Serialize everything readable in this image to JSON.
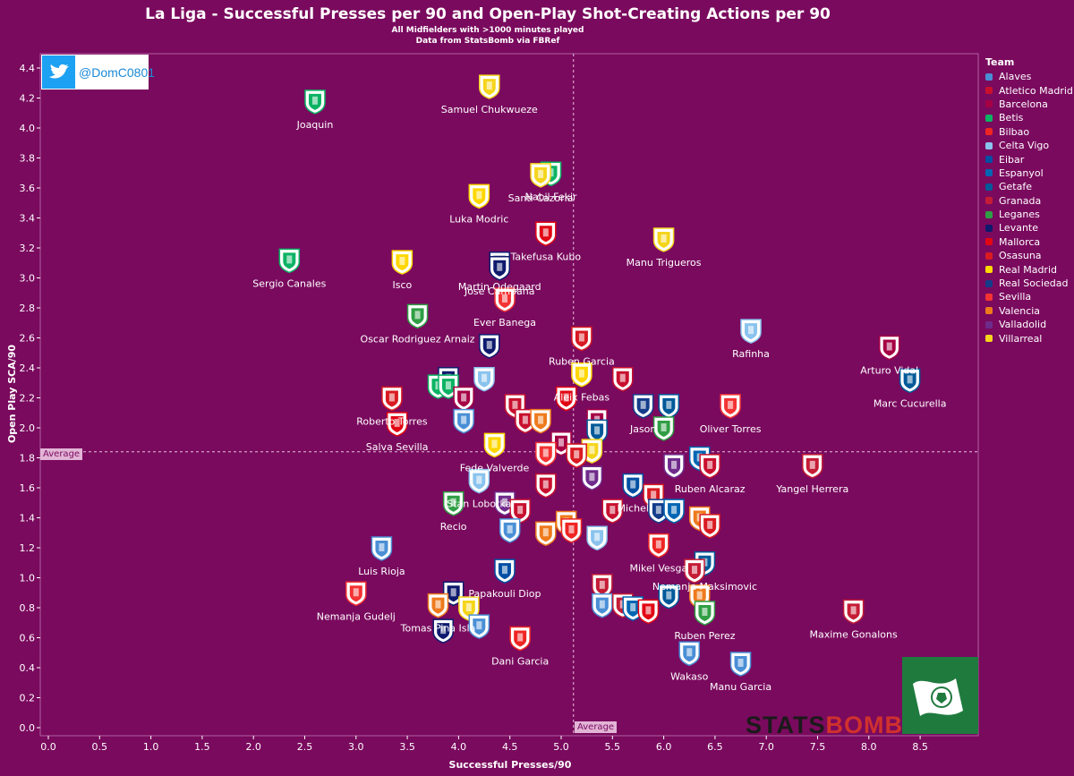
{
  "title": "La Liga - Successful Presses per 90 and Open-Play Shot-Creating Actions per 90",
  "subtitle1": "All Midfielders with >1000 minutes played",
  "subtitle2": "Data from StatsBomb via FBRef",
  "twitter_handle": "@DomC0801",
  "average_label_y": "Average",
  "average_label_x": "Average",
  "watermark": "STATSBOMB",
  "legend": {
    "title": "Team",
    "teams": [
      "Alaves",
      "Atletico Madrid",
      "Barcelona",
      "Betis",
      "Bilbao",
      "Celta Vigo",
      "Eibar",
      "Espanyol",
      "Getafe",
      "Granada",
      "Leganes",
      "Levante",
      "Mallorca",
      "Osasuna",
      "Real Madrid",
      "Real Sociedad",
      "Sevilla",
      "Valencia",
      "Valladolid",
      "Villarreal"
    ],
    "colors": [
      "#4a8fd6",
      "#c8102e",
      "#a50044",
      "#0bb363",
      "#ee2523",
      "#8ac3ee",
      "#004fa3",
      "#0066b3",
      "#005999",
      "#c51c36",
      "#2f9e44",
      "#0e1a6d",
      "#e20613",
      "#d91a21",
      "#ffd700",
      "#143c8b",
      "#f43333",
      "#ee7a1c",
      "#6e2b8b",
      "#f5d51c"
    ]
  },
  "chart_data": {
    "type": "scatter",
    "title": "La Liga - Successful Presses per 90 and Open-Play Shot-Creating Actions per 90",
    "xlabel": "Successful Presses/90",
    "ylabel": "Open Play SCA/90",
    "xlim": [
      -0.05,
      9.0
    ],
    "ylim": [
      -0.05,
      4.6
    ],
    "x_ticks": [
      0.0,
      0.5,
      1.0,
      1.5,
      2.0,
      2.5,
      3.0,
      3.5,
      4.0,
      4.5,
      5.0,
      5.5,
      6.0,
      6.5,
      7.0,
      7.5,
      8.0,
      8.5
    ],
    "y_ticks": [
      0.0,
      0.2,
      0.4,
      0.6,
      0.8,
      1.0,
      1.2,
      1.4,
      1.6,
      1.8,
      2.0,
      2.2,
      2.4,
      2.6,
      2.8,
      3.0,
      3.2,
      3.4,
      3.6,
      3.8,
      4.0,
      4.2,
      4.4
    ],
    "x_average": 5.12,
    "y_average": 1.84,
    "grid": false,
    "legend_position": "right",
    "points": [
      {
        "x": 2.6,
        "y": 4.18,
        "team": "Betis",
        "label": "Joaquin"
      },
      {
        "x": 4.3,
        "y": 4.28,
        "team": "Villarreal",
        "label": "Samuel Chukwueze"
      },
      {
        "x": 4.9,
        "y": 3.7,
        "team": "Betis",
        "label": "Nabil Fekir"
      },
      {
        "x": 4.8,
        "y": 3.69,
        "team": "Villarreal",
        "label": "Santi Cazorla"
      },
      {
        "x": 4.2,
        "y": 3.55,
        "team": "Real Madrid",
        "label": "Luka Modric"
      },
      {
        "x": 4.85,
        "y": 3.3,
        "team": "Mallorca",
        "label": "Takefusa Kubo"
      },
      {
        "x": 6.0,
        "y": 3.26,
        "team": "Villarreal",
        "label": "Manu Trigueros"
      },
      {
        "x": 3.45,
        "y": 3.11,
        "team": "Real Madrid",
        "label": "Isco"
      },
      {
        "x": 4.4,
        "y": 3.1,
        "team": "Levante",
        "label": "Martin Odegaard"
      },
      {
        "x": 2.35,
        "y": 3.12,
        "team": "Betis",
        "label": "Sergio Canales"
      },
      {
        "x": 4.4,
        "y": 3.07,
        "team": "Levante",
        "label": "Jose Campana"
      },
      {
        "x": 4.45,
        "y": 2.86,
        "team": "Sevilla",
        "label": "Ever Banega"
      },
      {
        "x": 3.6,
        "y": 2.75,
        "team": "Leganes",
        "label": "Oscar Rodriguez Arnaiz"
      },
      {
        "x": 5.2,
        "y": 2.6,
        "team": "Osasuna",
        "label": "Ruben Garcia"
      },
      {
        "x": 6.85,
        "y": 2.65,
        "team": "Celta Vigo",
        "label": "Rafinha"
      },
      {
        "x": 8.2,
        "y": 2.54,
        "team": "Barcelona",
        "label": "Arturo Vidal"
      },
      {
        "x": 4.3,
        "y": 2.55,
        "team": "Levante",
        "label": ""
      },
      {
        "x": 5.2,
        "y": 2.36,
        "team": "Real Madrid",
        "label": "Aleix Febas"
      },
      {
        "x": 8.4,
        "y": 2.32,
        "team": "Getafe",
        "label": "Marc Cucurella"
      },
      {
        "x": 3.9,
        "y": 2.33,
        "team": "Levante",
        "label": ""
      },
      {
        "x": 4.25,
        "y": 2.33,
        "team": "Celta Vigo",
        "label": ""
      },
      {
        "x": 5.6,
        "y": 2.33,
        "team": "Atletico Madrid",
        "label": ""
      },
      {
        "x": 3.8,
        "y": 2.28,
        "team": "Betis",
        "label": ""
      },
      {
        "x": 3.9,
        "y": 2.28,
        "team": "Betis",
        "label": ""
      },
      {
        "x": 3.35,
        "y": 2.2,
        "team": "Osasuna",
        "label": "Roberto Torres"
      },
      {
        "x": 4.05,
        "y": 2.2,
        "team": "Barcelona",
        "label": ""
      },
      {
        "x": 4.55,
        "y": 2.15,
        "team": "Atletico Madrid",
        "label": ""
      },
      {
        "x": 5.05,
        "y": 2.2,
        "team": "Mallorca",
        "label": ""
      },
      {
        "x": 5.8,
        "y": 2.15,
        "team": "Real Sociedad",
        "label": "Jason"
      },
      {
        "x": 6.05,
        "y": 2.15,
        "team": "Getafe",
        "label": ""
      },
      {
        "x": 6.65,
        "y": 2.15,
        "team": "Sevilla",
        "label": "Oliver Torres"
      },
      {
        "x": 4.05,
        "y": 2.05,
        "team": "Alaves",
        "label": ""
      },
      {
        "x": 4.65,
        "y": 2.05,
        "team": "Atletico Madrid",
        "label": ""
      },
      {
        "x": 4.8,
        "y": 2.05,
        "team": "Valencia",
        "label": ""
      },
      {
        "x": 5.35,
        "y": 2.05,
        "team": "Barcelona",
        "label": ""
      },
      {
        "x": 5.35,
        "y": 1.98,
        "team": "Getafe",
        "label": ""
      },
      {
        "x": 6.0,
        "y": 2.0,
        "team": "Leganes",
        "label": ""
      },
      {
        "x": 3.4,
        "y": 2.03,
        "team": "Mallorca",
        "label": "Salva Sevilla"
      },
      {
        "x": 5.0,
        "y": 1.9,
        "team": "Barcelona",
        "label": ""
      },
      {
        "x": 5.3,
        "y": 1.85,
        "team": "Villarreal",
        "label": ""
      },
      {
        "x": 4.35,
        "y": 1.89,
        "team": "Real Madrid",
        "label": "Fede Valverde"
      },
      {
        "x": 4.85,
        "y": 1.83,
        "team": "Sevilla",
        "label": ""
      },
      {
        "x": 5.15,
        "y": 1.82,
        "team": "Osasuna",
        "label": ""
      },
      {
        "x": 6.1,
        "y": 1.75,
        "team": "Valladolid",
        "label": ""
      },
      {
        "x": 6.35,
        "y": 1.8,
        "team": "Espanyol",
        "label": ""
      },
      {
        "x": 6.45,
        "y": 1.75,
        "team": "Atletico Madrid",
        "label": "Ruben Alcaraz"
      },
      {
        "x": 7.45,
        "y": 1.75,
        "team": "Granada",
        "label": "Yangel Herrera"
      },
      {
        "x": 5.3,
        "y": 1.67,
        "team": "Valladolid",
        "label": ""
      },
      {
        "x": 4.85,
        "y": 1.62,
        "team": "Atletico Madrid",
        "label": ""
      },
      {
        "x": 5.7,
        "y": 1.62,
        "team": "Eibar",
        "label": "Michel"
      },
      {
        "x": 5.9,
        "y": 1.55,
        "team": "Osasuna",
        "label": ""
      },
      {
        "x": 4.2,
        "y": 1.65,
        "team": "Celta Vigo",
        "label": "Stan Lobotka"
      },
      {
        "x": 3.95,
        "y": 1.5,
        "team": "Leganes",
        "label": "Recio"
      },
      {
        "x": 4.45,
        "y": 1.5,
        "team": "Valladolid",
        "label": ""
      },
      {
        "x": 4.6,
        "y": 1.45,
        "team": "Atletico Madrid",
        "label": ""
      },
      {
        "x": 5.5,
        "y": 1.45,
        "team": "Atletico Madrid",
        "label": ""
      },
      {
        "x": 5.95,
        "y": 1.45,
        "team": "Real Sociedad",
        "label": ""
      },
      {
        "x": 6.1,
        "y": 1.45,
        "team": "Espanyol",
        "label": ""
      },
      {
        "x": 6.35,
        "y": 1.4,
        "team": "Valencia",
        "label": ""
      },
      {
        "x": 6.45,
        "y": 1.35,
        "team": "Osasuna",
        "label": ""
      },
      {
        "x": 5.05,
        "y": 1.37,
        "team": "Valencia",
        "label": ""
      },
      {
        "x": 4.5,
        "y": 1.32,
        "team": "Alaves",
        "label": ""
      },
      {
        "x": 4.85,
        "y": 1.3,
        "team": "Valencia",
        "label": ""
      },
      {
        "x": 5.1,
        "y": 1.32,
        "team": "Bilbao",
        "label": ""
      },
      {
        "x": 5.35,
        "y": 1.27,
        "team": "Celta Vigo",
        "label": ""
      },
      {
        "x": 3.25,
        "y": 1.2,
        "team": "Alaves",
        "label": "Luis Rioja"
      },
      {
        "x": 5.95,
        "y": 1.22,
        "team": "Bilbao",
        "label": "Mikel Vesga"
      },
      {
        "x": 6.4,
        "y": 1.1,
        "team": "Getafe",
        "label": "Nemanja Maksimovic"
      },
      {
        "x": 6.3,
        "y": 1.05,
        "team": "Granada",
        "label": ""
      },
      {
        "x": 4.45,
        "y": 1.05,
        "team": "Eibar",
        "label": "Papakouli Diop"
      },
      {
        "x": 5.4,
        "y": 0.95,
        "team": "Granada",
        "label": ""
      },
      {
        "x": 3.0,
        "y": 0.9,
        "team": "Sevilla",
        "label": "Nemanja Gudelj"
      },
      {
        "x": 3.95,
        "y": 0.9,
        "team": "Levante",
        "label": ""
      },
      {
        "x": 6.05,
        "y": 0.88,
        "team": "Getafe",
        "label": ""
      },
      {
        "x": 6.35,
        "y": 0.88,
        "team": "Valencia",
        "label": ""
      },
      {
        "x": 3.8,
        "y": 0.82,
        "team": "Valencia",
        "label": "Tomas Pina Isla"
      },
      {
        "x": 4.1,
        "y": 0.8,
        "team": "Villarreal",
        "label": ""
      },
      {
        "x": 5.4,
        "y": 0.82,
        "team": "Alaves",
        "label": ""
      },
      {
        "x": 5.6,
        "y": 0.82,
        "team": "Granada",
        "label": ""
      },
      {
        "x": 5.7,
        "y": 0.8,
        "team": "Espanyol",
        "label": ""
      },
      {
        "x": 5.85,
        "y": 0.78,
        "team": "Mallorca",
        "label": ""
      },
      {
        "x": 6.4,
        "y": 0.77,
        "team": "Leganes",
        "label": "Ruben Perez"
      },
      {
        "x": 7.85,
        "y": 0.78,
        "team": "Granada",
        "label": "Maxime Gonalons"
      },
      {
        "x": 3.85,
        "y": 0.65,
        "team": "Levante",
        "label": ""
      },
      {
        "x": 4.2,
        "y": 0.68,
        "team": "Alaves",
        "label": ""
      },
      {
        "x": 4.6,
        "y": 0.6,
        "team": "Bilbao",
        "label": "Dani Garcia"
      },
      {
        "x": 6.25,
        "y": 0.5,
        "team": "Alaves",
        "label": "Wakaso"
      },
      {
        "x": 6.75,
        "y": 0.43,
        "team": "Alaves",
        "label": "Manu Garcia"
      }
    ]
  }
}
